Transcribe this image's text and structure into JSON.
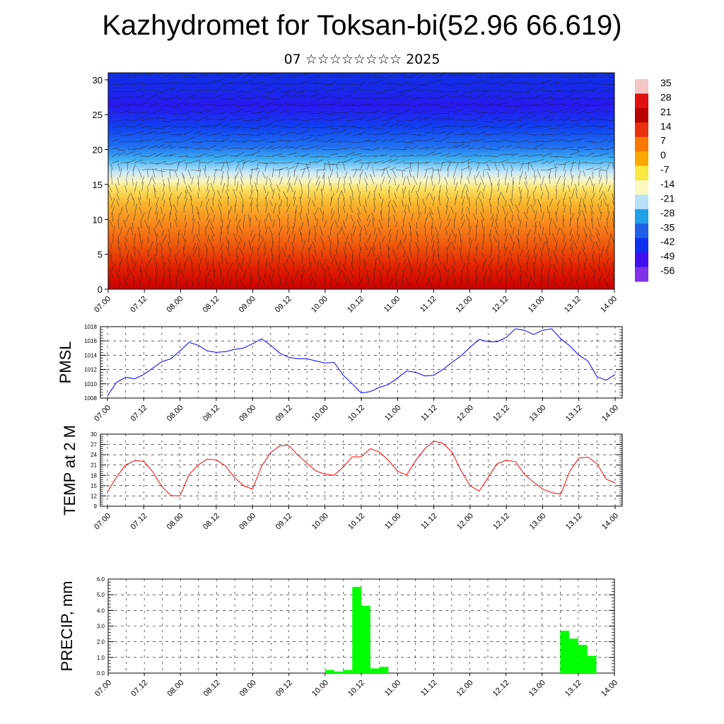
{
  "title": "Kazhydromet for Toksan-bi(52.96 66.619)",
  "subtitle": "07 ☆☆☆☆☆☆☆☆ 2025",
  "x_tick_labels": [
    "07.00",
    "07.12",
    "08.00",
    "08.12",
    "09.00",
    "09.12",
    "10.00",
    "10.12",
    "11.00",
    "11.12",
    "12.00",
    "12.12",
    "13.00",
    "13.12",
    "14.00"
  ],
  "chart_data": [
    {
      "type": "heatmap",
      "name": "cross-section",
      "ylim": [
        0,
        31
      ],
      "yticks": [
        0,
        5,
        10,
        15,
        20,
        25,
        30
      ],
      "colorbar": {
        "labels": [
          "35",
          "28",
          "21",
          "14",
          "7",
          "0",
          "-7",
          "-14",
          "-21",
          "-28",
          "-35",
          "-42",
          "-49",
          "-56"
        ],
        "colors": [
          "#f5c6c6",
          "#e01010",
          "#b80000",
          "#e83010",
          "#f87800",
          "#f8a800",
          "#f8e840",
          "#f8f8c0",
          "#b8e0f8",
          "#20a0e8",
          "#2060e8",
          "#1030f0",
          "#4010f0",
          "#8030e8"
        ]
      }
    },
    {
      "type": "line",
      "ylabel": "PMSL",
      "ylim": [
        1008,
        1018
      ],
      "yticks": [
        1008,
        1010,
        1012,
        1014,
        1016,
        1018
      ],
      "color": "#0000ff",
      "x": [
        0,
        3,
        6,
        9,
        12,
        15,
        18,
        21,
        24,
        27,
        30,
        33,
        36,
        39,
        42,
        45,
        48,
        51,
        54,
        57,
        60,
        63,
        66,
        69,
        72,
        75,
        78,
        81,
        84,
        87,
        90,
        93,
        96,
        99,
        102,
        105,
        108,
        111,
        114,
        117,
        120,
        123,
        126,
        129,
        132,
        135,
        138,
        141,
        144,
        147,
        150,
        153,
        156,
        159,
        162,
        165,
        168
      ],
      "values": [
        1008.3,
        1010.2,
        1010.9,
        1010.7,
        1011.3,
        1012.2,
        1013.1,
        1013.5,
        1014.6,
        1015.8,
        1015.4,
        1014.6,
        1014.4,
        1014.5,
        1014.8,
        1015.0,
        1015.6,
        1016.3,
        1015.4,
        1014.3,
        1013.7,
        1013.5,
        1013.5,
        1013.2,
        1012.9,
        1013.0,
        1011.2,
        1010.0,
        1008.7,
        1008.9,
        1009.5,
        1009.9,
        1010.8,
        1011.8,
        1011.6,
        1011.1,
        1011.2,
        1012.0,
        1013.0,
        1013.9,
        1015.1,
        1016.2,
        1015.9,
        1015.9,
        1016.5,
        1017.7,
        1017.5,
        1016.9,
        1017.5,
        1017.7,
        1016.3,
        1015.3,
        1014.0,
        1013.2,
        1011.0,
        1010.5,
        1011.3
      ]
    },
    {
      "type": "line",
      "ylabel": "TEMP at 2 M",
      "ylim": [
        9,
        30
      ],
      "yticks": [
        9,
        12,
        15,
        18,
        21,
        24,
        27,
        30
      ],
      "color": "#ff0000",
      "x": [
        0,
        3,
        6,
        9,
        12,
        15,
        18,
        21,
        24,
        27,
        30,
        33,
        36,
        39,
        42,
        45,
        48,
        51,
        54,
        57,
        60,
        63,
        66,
        69,
        72,
        75,
        78,
        81,
        84,
        87,
        90,
        93,
        96,
        99,
        102,
        105,
        108,
        111,
        114,
        117,
        120,
        123,
        126,
        129,
        132,
        135,
        138,
        141,
        144,
        147,
        150,
        153,
        156,
        159,
        162,
        165,
        168
      ],
      "values": [
        13.2,
        17.5,
        21.0,
        22.3,
        22.1,
        19.0,
        14.7,
        12.1,
        12.0,
        18.2,
        21.0,
        22.7,
        22.5,
        20.8,
        17.4,
        15.0,
        14.0,
        20.7,
        24.6,
        26.6,
        26.7,
        23.9,
        21.5,
        19.3,
        18.3,
        18.0,
        20.4,
        23.4,
        23.4,
        25.8,
        24.8,
        22.3,
        19.2,
        18.1,
        22.3,
        25.7,
        28.0,
        27.3,
        24.8,
        19.4,
        15.0,
        13.4,
        17.4,
        21.4,
        22.4,
        22.0,
        18.3,
        16.0,
        14.0,
        13.0,
        12.5,
        19.2,
        23.0,
        23.3,
        21.4,
        16.9,
        15.8
      ]
    },
    {
      "type": "bar",
      "ylabel": "PRECIP, mm",
      "ylim": [
        0,
        6
      ],
      "ytick_labels": [
        "0.0",
        "1.0",
        "2.0",
        "3.0",
        "4.0",
        "5.0",
        "6.0"
      ],
      "color": "#00ff00",
      "interval_hours": 3,
      "x": [
        72,
        75,
        78,
        81,
        84,
        87,
        90,
        150,
        153,
        156,
        159
      ],
      "values": [
        0.2,
        0.1,
        0.2,
        5.5,
        4.3,
        0.3,
        0.4,
        2.7,
        2.2,
        1.8,
        1.1
      ]
    }
  ]
}
